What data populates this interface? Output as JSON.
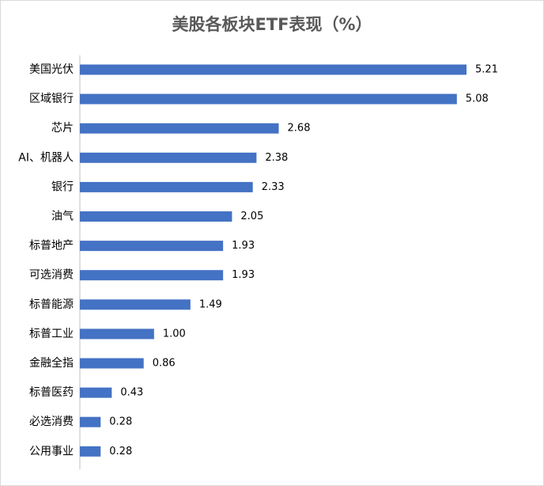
{
  "chart_data": {
    "type": "bar",
    "orientation": "horizontal",
    "title": "美股各板块ETF表现（%）",
    "xlabel": "",
    "ylabel": "",
    "categories": [
      "美国光伏",
      "区域银行",
      "芯片",
      "AI、机器人",
      "银行",
      "油气",
      "标普地产",
      "可选消费",
      "标普能源",
      "标普工业",
      "金融全指",
      "标普医药",
      "必选消费",
      "公用事业"
    ],
    "values": [
      5.21,
      5.08,
      2.68,
      2.38,
      2.33,
      2.05,
      1.93,
      1.93,
      1.49,
      1.0,
      0.86,
      0.43,
      0.28,
      0.28
    ],
    "value_labels": [
      "5.21",
      "5.08",
      "2.68",
      "2.38",
      "2.33",
      "2.05",
      "1.93",
      "1.93",
      "1.49",
      "1.00",
      "0.86",
      "0.43",
      "0.28",
      "0.28"
    ],
    "xlim": [
      0,
      5.21
    ],
    "grid": false,
    "legend": "none",
    "bar_color": "#4472c4"
  }
}
